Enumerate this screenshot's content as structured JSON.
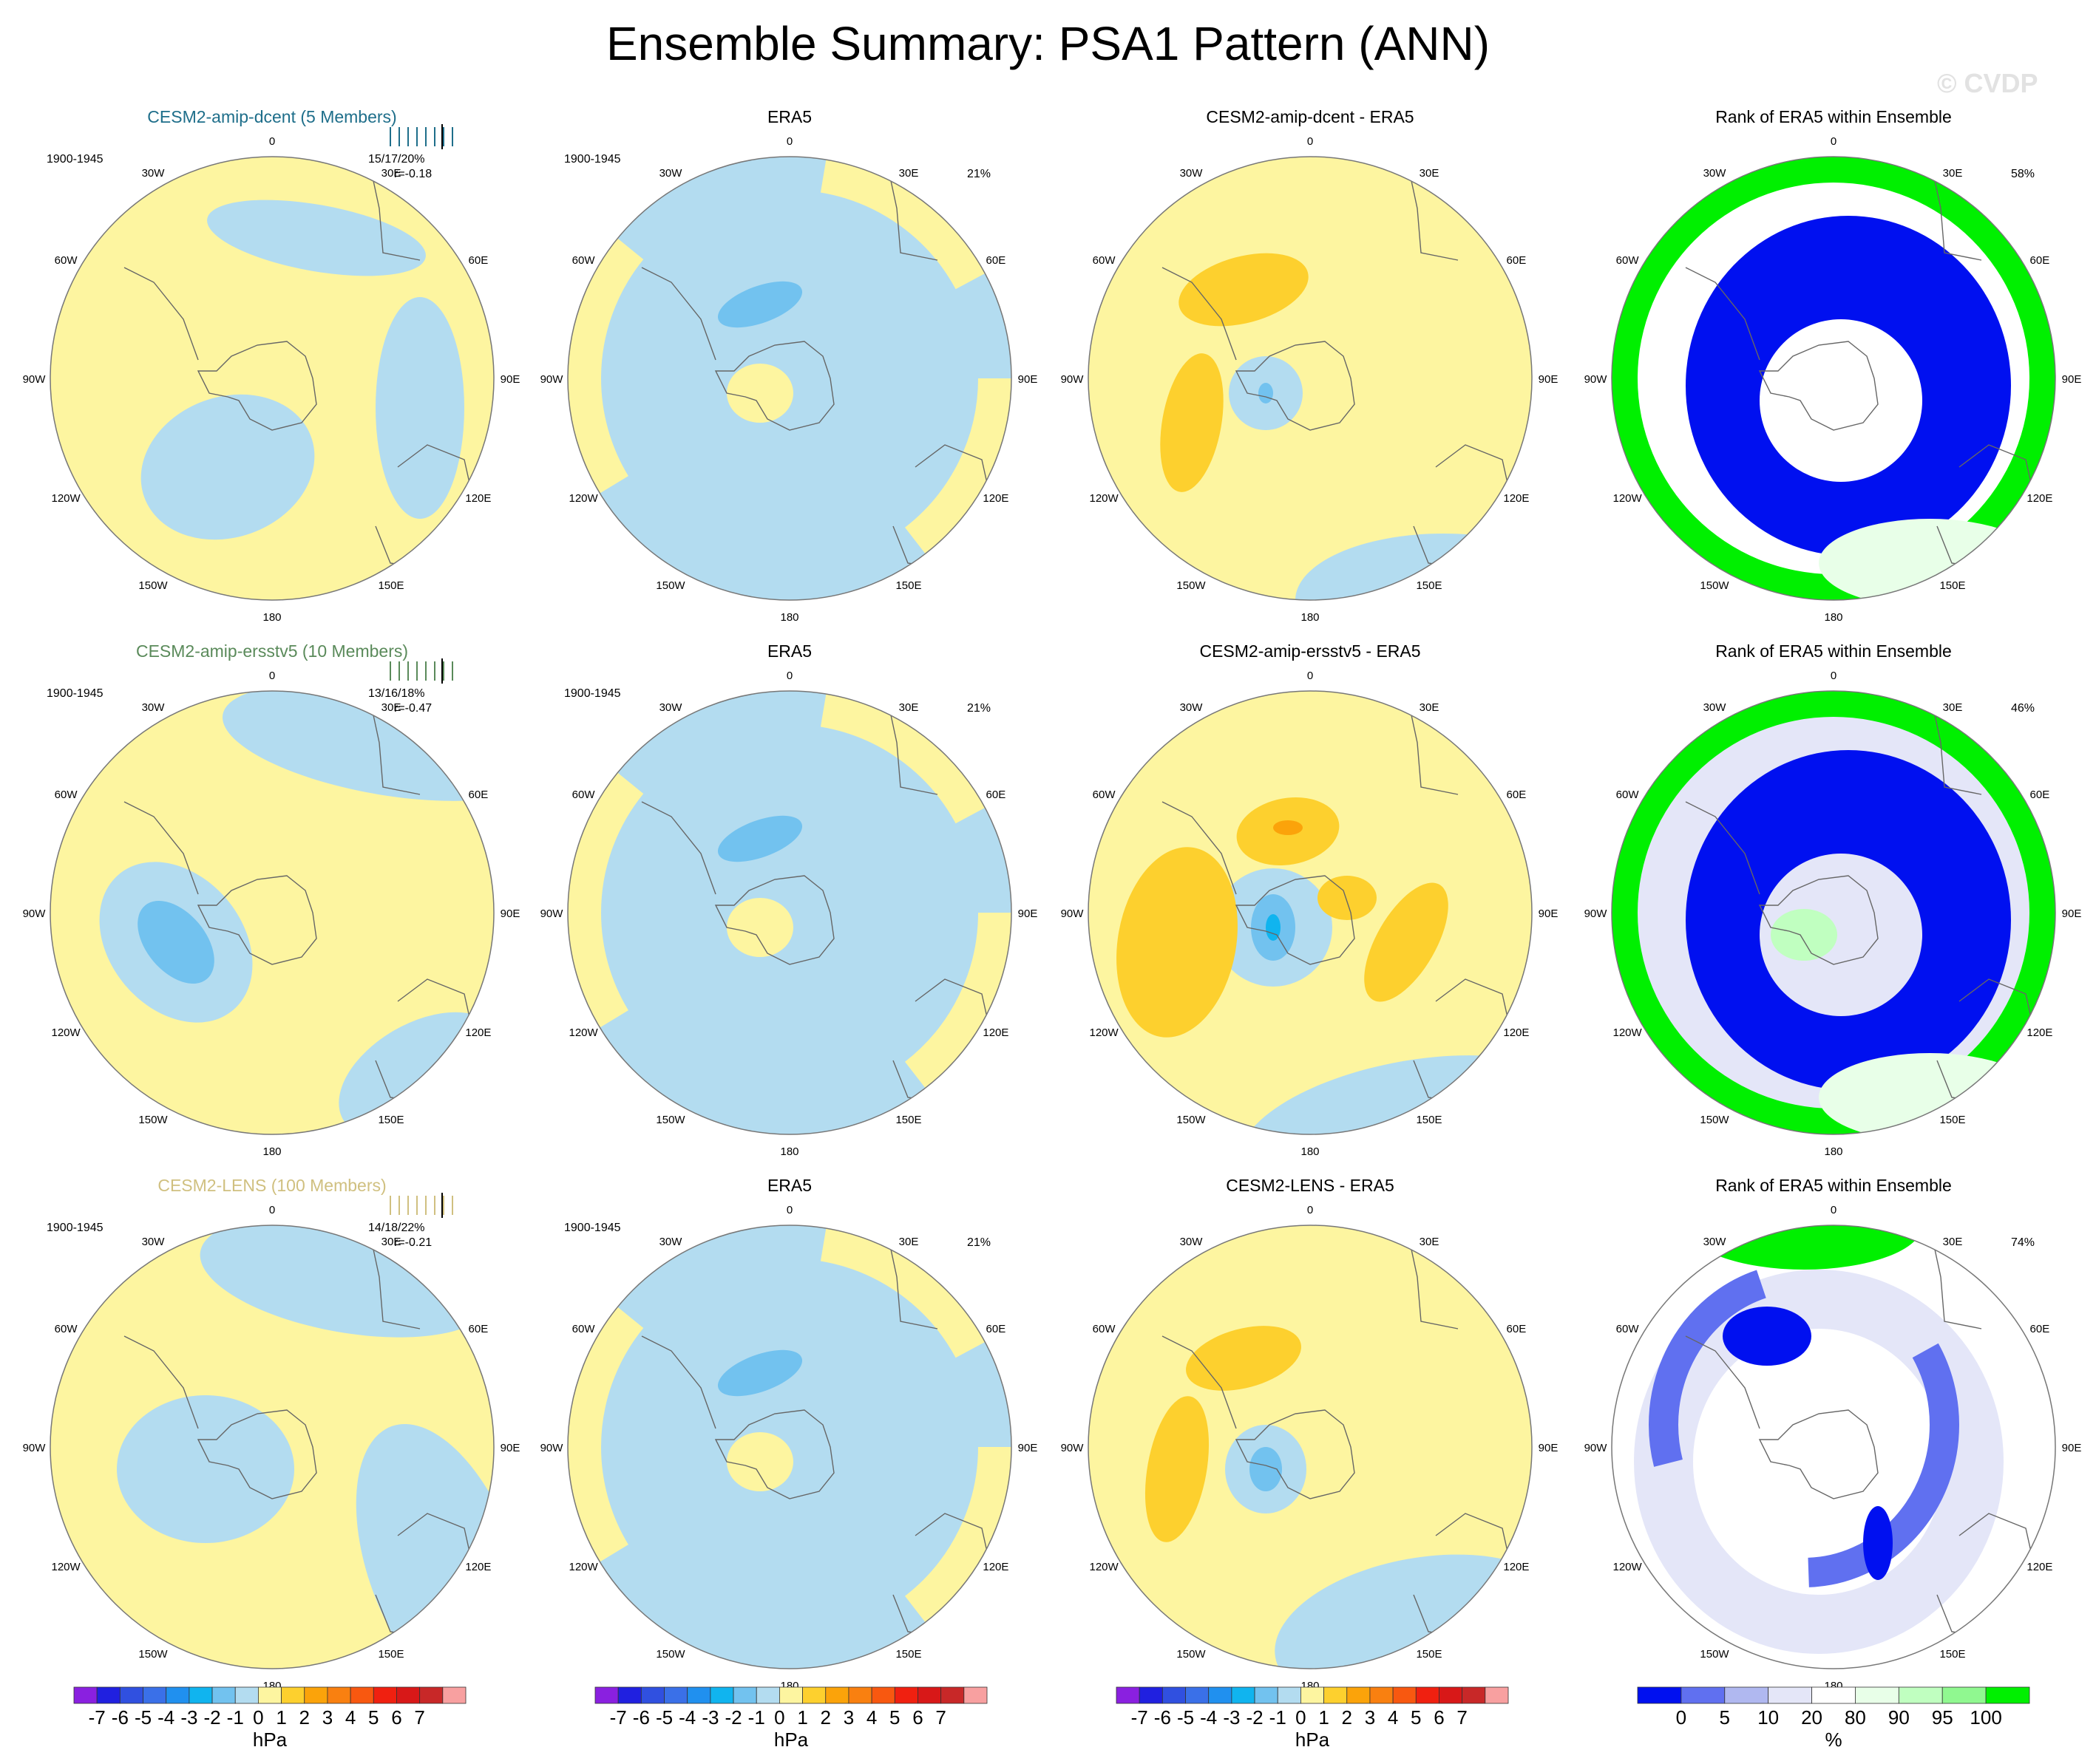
{
  "title": "Ensemble Summary: PSA1 Pattern (ANN)",
  "watermark": "© CVDP",
  "colors": {
    "pos1": "#fdf5a0",
    "neg1": "#b3dcf0",
    "pos2": "#fdd02e",
    "neg2": "#72c2ef",
    "pos3": "#fba30a",
    "neg3": "#10b4ef",
    "rank_0": "#0010f0",
    "rank_5": "#6070f0",
    "rank_10": "#b0b8f0",
    "rank_20": "#e4e6f8",
    "rank_mid": "#ffffff",
    "rank_80": "#e8ffe8",
    "rank_90": "#c0ffc0",
    "rank_95": "#90f890",
    "rank_100": "#00f000"
  },
  "rows": [
    {
      "ensemble": {
        "title": "CESM2-amip-dcent (5 Members)",
        "title_color": "#1e6e8a",
        "period": "1900-1945",
        "stats": "15/17/20%",
        "r": "r=-0.18"
      },
      "obs": {
        "title": "ERA5",
        "period": "1900-1945",
        "pct": "21%"
      },
      "diff": {
        "title": "CESM2-amip-dcent - ERA5"
      },
      "rank": {
        "title": "Rank of ERA5 within Ensemble",
        "pct": "58%"
      }
    },
    {
      "ensemble": {
        "title": "CESM2-amip-ersstv5 (10 Members)",
        "title_color": "#5a8a5a",
        "period": "1900-1945",
        "stats": "13/16/18%",
        "r": "r=-0.47"
      },
      "obs": {
        "title": "ERA5",
        "period": "1900-1945",
        "pct": "21%"
      },
      "diff": {
        "title": "CESM2-amip-ersstv5 - ERA5"
      },
      "rank": {
        "title": "Rank of ERA5 within Ensemble",
        "pct": "46%"
      }
    },
    {
      "ensemble": {
        "title": "CESM2-LENS (100 Members)",
        "title_color": "#d0c080",
        "period": "1900-1945",
        "stats": "14/18/22%",
        "r": "r=-0.21"
      },
      "obs": {
        "title": "ERA5",
        "period": "1900-1945",
        "pct": "21%"
      },
      "diff": {
        "title": "CESM2-LENS - ERA5"
      },
      "rank": {
        "title": "Rank of ERA5 within Ensemble",
        "pct": "74%"
      }
    }
  ],
  "lon_labels": [
    "0",
    "30E",
    "60E",
    "90E",
    "120E",
    "150E",
    "180",
    "150W",
    "120W",
    "90W",
    "60W",
    "30W"
  ],
  "colorbar_hpa": {
    "colors": [
      "#8a20e0",
      "#2020e0",
      "#3050e0",
      "#3a70e8",
      "#2090ef",
      "#10b4ef",
      "#72c2ef",
      "#b3dcf0",
      "#fdf5a0",
      "#fdd02e",
      "#fba30a",
      "#f98010",
      "#f85810",
      "#f02010",
      "#d81818",
      "#c82828",
      "#f8a0a0"
    ],
    "labels": [
      "-7",
      "-6",
      "-5",
      "-4",
      "-3",
      "-2",
      "-1",
      "0",
      "1",
      "2",
      "3",
      "4",
      "5",
      "6",
      "7"
    ],
    "unit": "hPa"
  },
  "colorbar_rank": {
    "colors": [
      "#0010f0",
      "#6070f0",
      "#b0b8f0",
      "#e4e6f8",
      "#ffffff",
      "#e8ffe8",
      "#c0ffc0",
      "#90f890",
      "#00f000"
    ],
    "labels": [
      "0",
      "5",
      "10",
      "20",
      "80",
      "90",
      "95",
      "100"
    ],
    "unit": "%"
  }
}
